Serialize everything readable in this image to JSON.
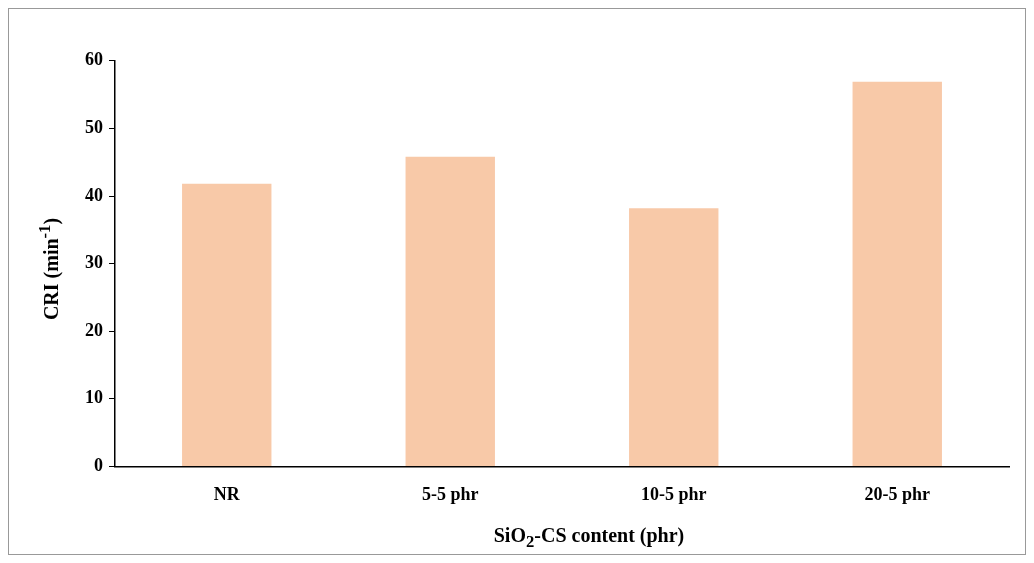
{
  "chart_data": {
    "type": "bar",
    "xlabel": "SiO$_{2}$-CS content (phr)",
    "ylabel": "CRI (min$^{-1}$)",
    "categories": [
      "NR",
      "5-5 phr",
      "10-5 phr",
      "20-5 phr"
    ],
    "series": [
      {
        "color": "#f8c9a8",
        "values": [
          41.8,
          45.8,
          38.2,
          56.9
        ]
      }
    ],
    "ylim": [
      0,
      60
    ],
    "yticks": [
      0,
      10,
      20,
      30,
      40,
      50,
      60
    ],
    "grid": false,
    "legend": false
  }
}
